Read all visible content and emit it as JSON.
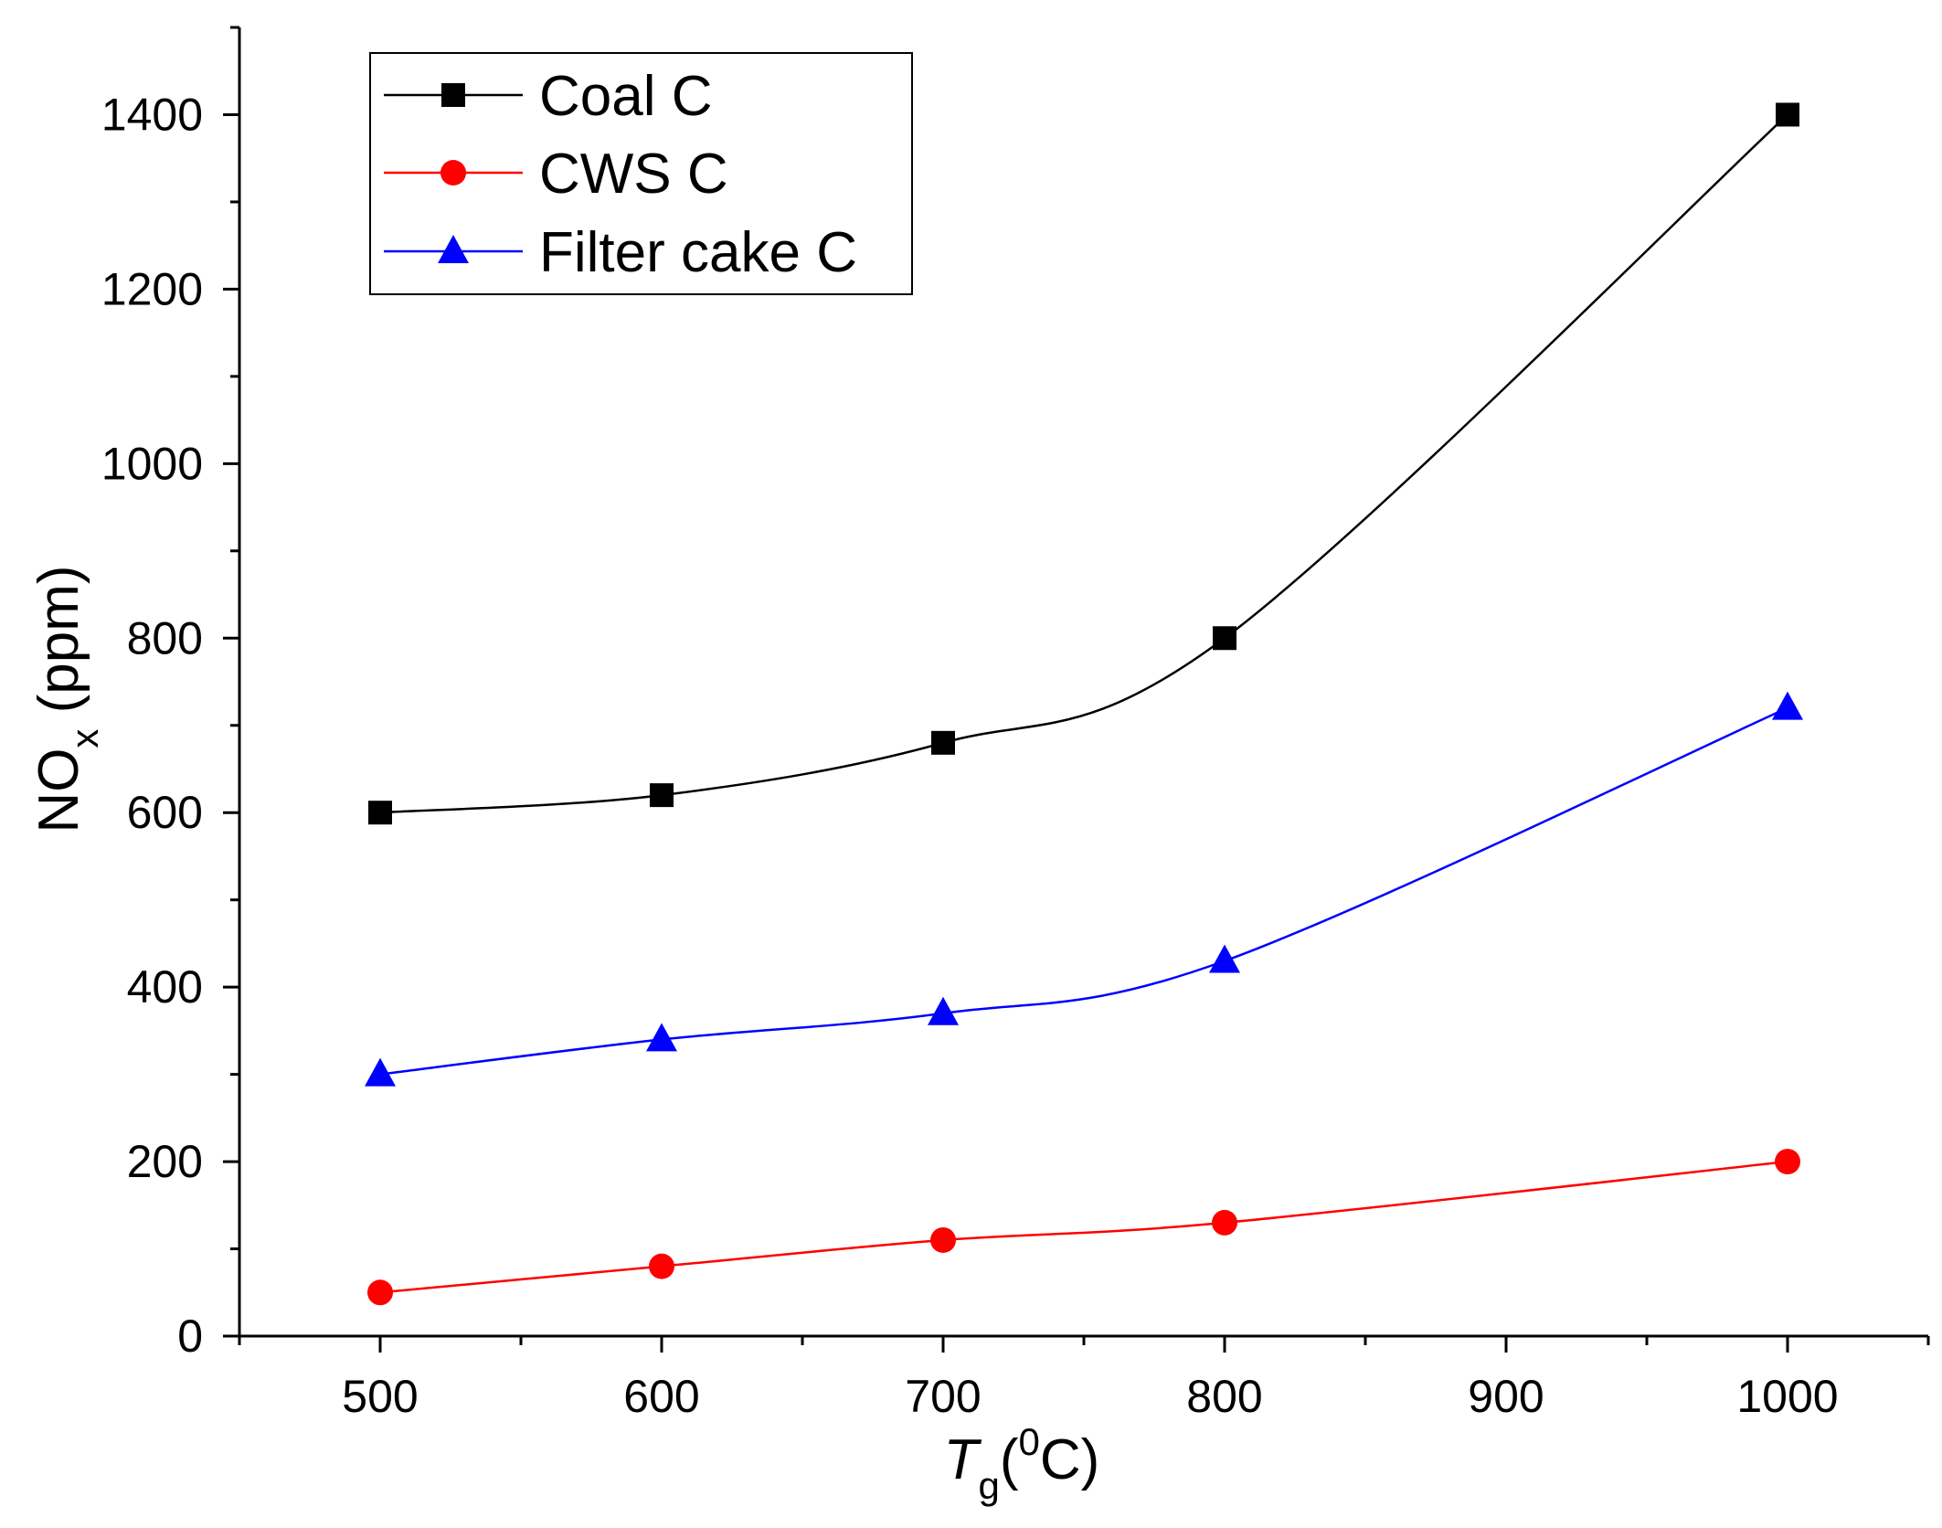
{
  "chart_data": {
    "type": "line",
    "title": "",
    "xlabel": {
      "main": "T",
      "sub": "g",
      "open": "(",
      "sup": "0",
      "unit": "C)"
    },
    "ylabel": {
      "main": "NO",
      "sub": "x",
      "unit": " (ppm)"
    },
    "xlim": [
      450,
      1050
    ],
    "ylim": [
      0,
      1500
    ],
    "xticks": [
      500,
      600,
      700,
      800,
      900,
      1000
    ],
    "yticks": [
      0,
      200,
      400,
      600,
      800,
      1000,
      1200,
      1400
    ],
    "x": [
      500,
      600,
      700,
      800,
      1000
    ],
    "legend_position": "top-left",
    "series": [
      {
        "name": "Coal C",
        "color": "#000000",
        "marker": "square",
        "values": [
          600,
          620,
          680,
          800,
          1400
        ]
      },
      {
        "name": "CWS C",
        "color": "#ff0000",
        "marker": "circle",
        "values": [
          50,
          80,
          110,
          130,
          200
        ]
      },
      {
        "name": "Filter cake C",
        "color": "#0000ff",
        "marker": "triangle",
        "values": [
          300,
          340,
          370,
          430,
          720
        ]
      }
    ]
  }
}
